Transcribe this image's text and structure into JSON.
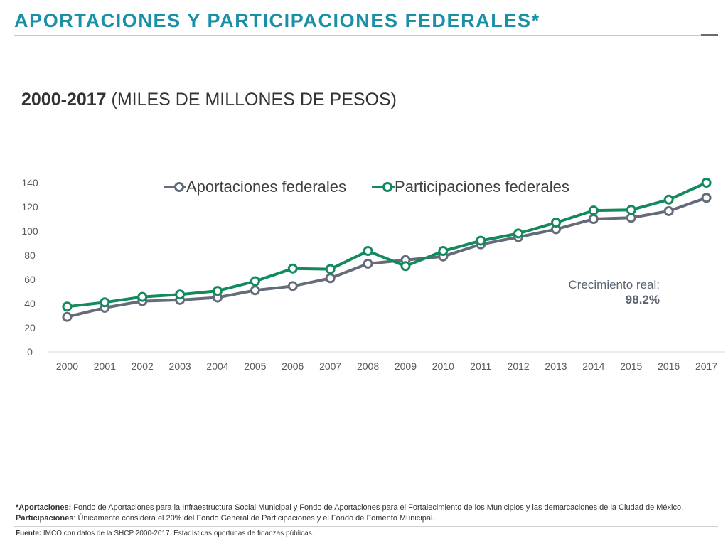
{
  "slide": {
    "title": "APORTACIONES Y PARTICIPACIONES FEDERALES*",
    "subtitle_bold": "2000-2017",
    "subtitle_rest": " (MILES DE MILLONES DE PESOS)"
  },
  "chart_data": {
    "type": "line",
    "title": "",
    "xlabel": "",
    "ylabel": "",
    "categories": [
      "2000",
      "2001",
      "2002",
      "2003",
      "2004",
      "2005",
      "2006",
      "2007",
      "2008",
      "2009",
      "2010",
      "2011",
      "2012",
      "2013",
      "2014",
      "2015",
      "2016",
      "2017"
    ],
    "ylim": [
      0,
      140
    ],
    "yticks": [
      0,
      20,
      40,
      60,
      80,
      100,
      120,
      140
    ],
    "grid": false,
    "legend_position": "top",
    "series": [
      {
        "name": "Aportaciones federales",
        "color": "#646b7a",
        "values": [
          29,
          36.5,
          42,
          43,
          45,
          51,
          54.5,
          61,
          73,
          76,
          79,
          89,
          95,
          101.5,
          110,
          111,
          116.5,
          127.5
        ]
      },
      {
        "name": "Participaciones federales",
        "color": "#138a5e",
        "values": [
          37.5,
          41,
          45.5,
          47.5,
          50.5,
          58.5,
          69,
          68.5,
          83.5,
          71,
          83.5,
          92,
          98,
          107,
          117,
          117.5,
          126,
          140
        ]
      }
    ]
  },
  "annotation": {
    "label": "Crecimiento real:",
    "value": "98.2%"
  },
  "footnotes": {
    "aportaciones_term": "*Aportaciones:",
    "aportaciones_text": " Fondo de Aportaciones para la Infraestructura Social Municipal y Fondo de Aportaciones para el Fortalecimiento de los Municipios y las demarcaciones de la Ciudad de México.",
    "participaciones_term": "Participaciones",
    "participaciones_text": ": Únicamente considera el 20% del Fondo General de Participaciones y el Fondo de Fomento Municipal."
  },
  "source": {
    "term": "Fuente:",
    "text": " IMCO con datos de la SHCP 2000-2017. Estadísticas oportunas de finanzas públicas."
  }
}
